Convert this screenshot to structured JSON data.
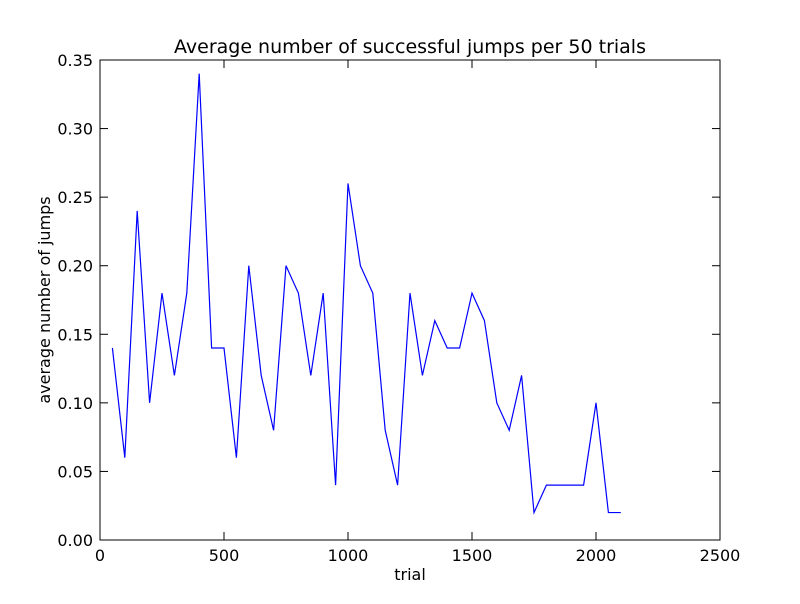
{
  "chart_data": {
    "type": "line",
    "title": "Average number of successful jumps per 50 trials",
    "xlabel": "trial",
    "ylabel": "average number of jumps",
    "xlim": [
      0,
      2500
    ],
    "ylim": [
      0,
      0.35
    ],
    "xticks": [
      0,
      500,
      1000,
      1500,
      2000,
      2500
    ],
    "xtick_labels": [
      "0",
      "500",
      "1000",
      "1500",
      "2000",
      "2500"
    ],
    "yticks": [
      0,
      0.05,
      0.1,
      0.15,
      0.2,
      0.25,
      0.3,
      0.35
    ],
    "ytick_labels": [
      "0.00",
      "0.05",
      "0.10",
      "0.15",
      "0.20",
      "0.25",
      "0.30",
      "0.35"
    ],
    "grid": false,
    "legend": "none",
    "line_color": "#0000ff",
    "series": [
      {
        "x": [
          50,
          100,
          150,
          200,
          250,
          300,
          350,
          400,
          450,
          500,
          550,
          600,
          650,
          700,
          750,
          800,
          850,
          900,
          950,
          1000,
          1050,
          1100,
          1150,
          1200,
          1250,
          1300,
          1350,
          1400,
          1450,
          1500,
          1550,
          1600,
          1650,
          1700,
          1750,
          1800,
          1850,
          1900,
          1950,
          2000,
          2050,
          2100
        ],
        "values": [
          0.14,
          0.06,
          0.24,
          0.1,
          0.18,
          0.12,
          0.18,
          0.34,
          0.14,
          0.14,
          0.06,
          0.2,
          0.12,
          0.08,
          0.2,
          0.18,
          0.12,
          0.18,
          0.04,
          0.26,
          0.2,
          0.18,
          0.08,
          0.04,
          0.18,
          0.12,
          0.16,
          0.14,
          0.14,
          0.18,
          0.16,
          0.1,
          0.08,
          0.12,
          0.02,
          0.04,
          0.04,
          0.04,
          0.04,
          0.1,
          0.02,
          0.02
        ]
      }
    ]
  }
}
